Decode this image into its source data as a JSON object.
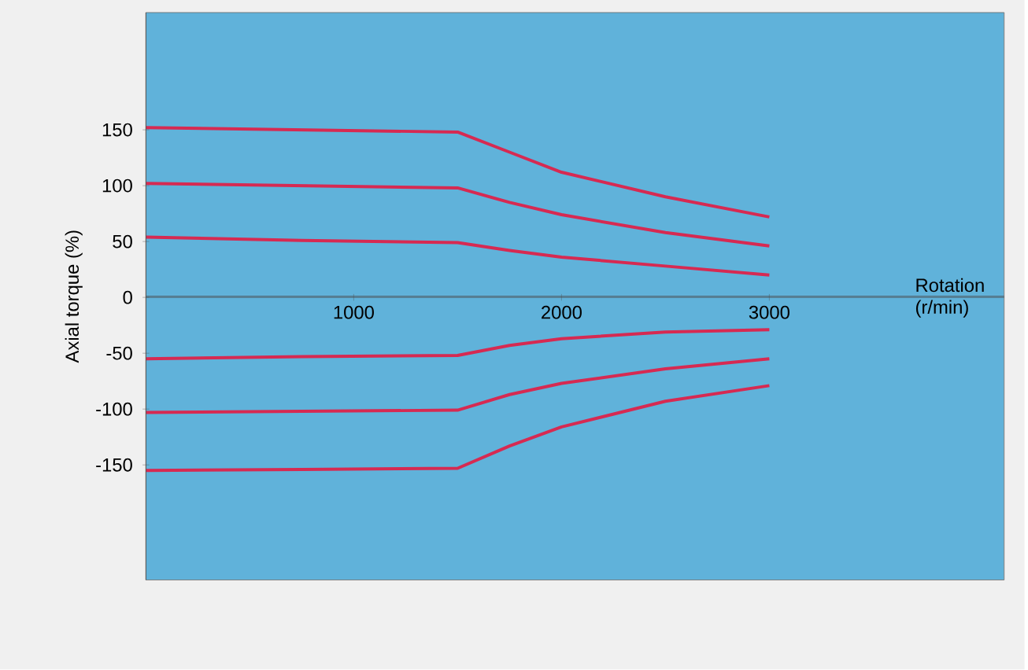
{
  "chart_data": {
    "type": "line",
    "xlabel": "Rotation (r/min)",
    "ylabel": "Axial torque (%)",
    "x": [
      0,
      750,
      1500,
      1750,
      2000,
      2500,
      3000
    ],
    "series": [
      {
        "color": "#d62a52",
        "values": [
          152,
          150,
          148,
          130,
          112,
          90,
          72
        ]
      },
      {
        "color": "#d62a52",
        "values": [
          102,
          100,
          98,
          85,
          74,
          58,
          46
        ]
      },
      {
        "color": "#d62a52",
        "values": [
          54,
          51,
          49,
          42,
          36,
          28,
          20
        ]
      },
      {
        "color": "#d62a52",
        "values": [
          -55,
          -53,
          -52,
          -43,
          -37,
          -31,
          -29
        ]
      },
      {
        "color": "#d62a52",
        "values": [
          -103,
          -102,
          -101,
          -87,
          -77,
          -64,
          -55
        ]
      },
      {
        "color": "#d62a52",
        "values": [
          -155,
          -154,
          -153,
          -133,
          -116,
          -93,
          -79
        ]
      }
    ],
    "xlim": [
      0,
      4130
    ],
    "ylim": [
      -253,
      255
    ],
    "xticks": [
      1000,
      2000,
      3000
    ],
    "yticks": [
      -150,
      -100,
      -50,
      0,
      50,
      100,
      150
    ]
  }
}
